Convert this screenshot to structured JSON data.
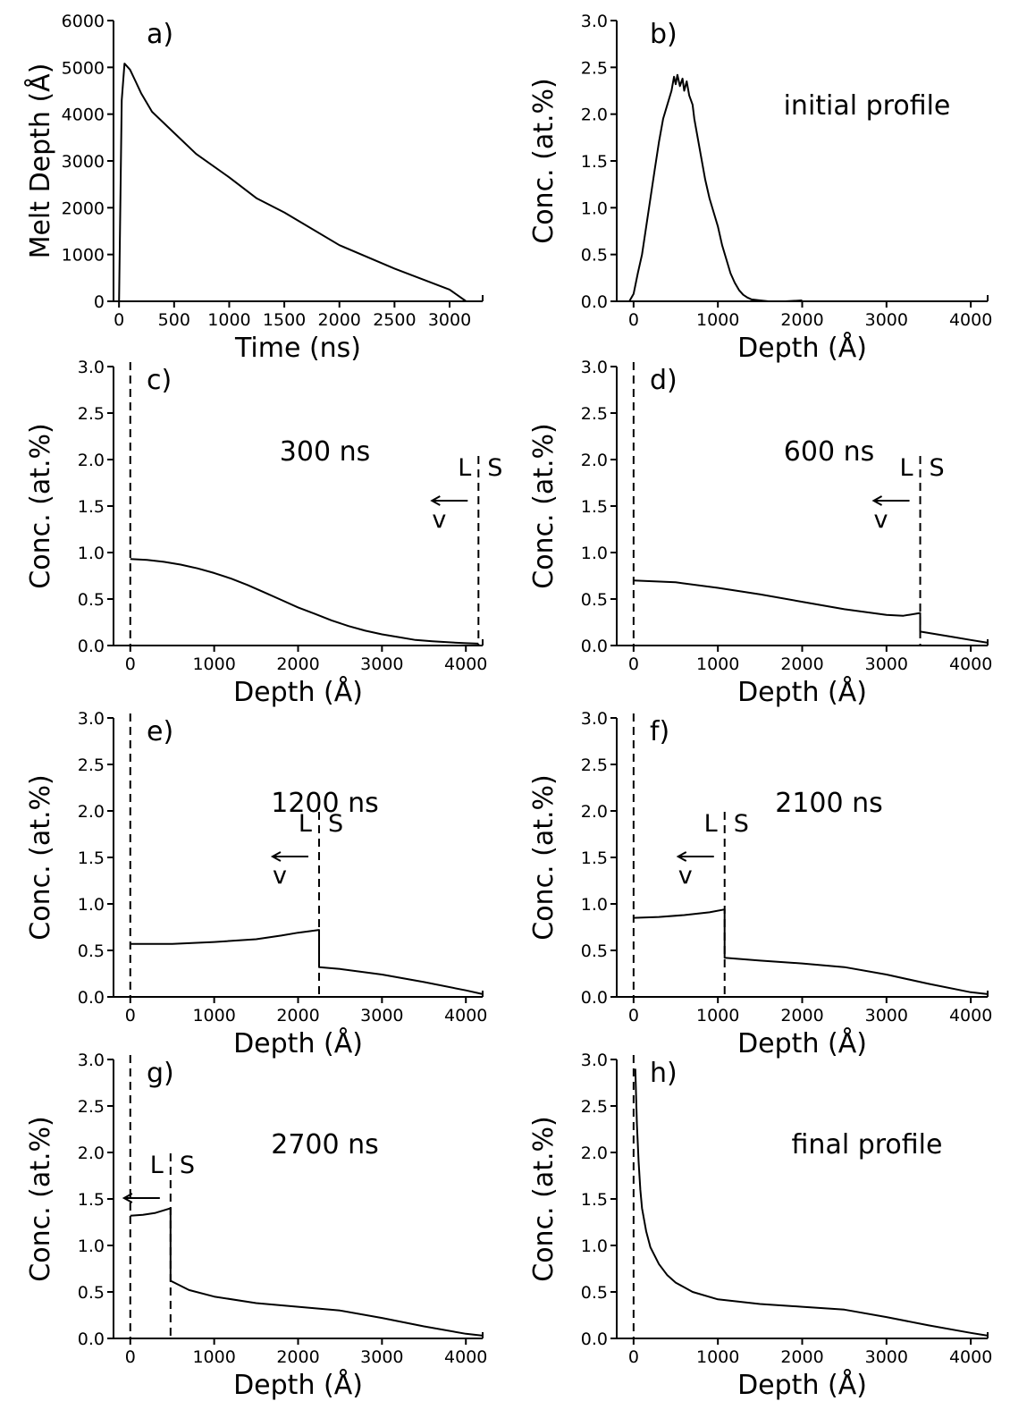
{
  "chart_data": [
    {
      "id": "a",
      "type": "line",
      "letter": "a)",
      "annotation": "",
      "xlabel": "Time (ns)",
      "ylabel": "Melt Depth (Å)",
      "xlim": [
        -50,
        3300
      ],
      "ylim": [
        0,
        6000
      ],
      "xticks": [
        0,
        500,
        1000,
        1500,
        2000,
        2500,
        3000
      ],
      "yticks": [
        0,
        1000,
        2000,
        3000,
        4000,
        5000,
        6000
      ],
      "series": [
        {
          "x": [
            0,
            25,
            50,
            100,
            150,
            200,
            300,
            500,
            700,
            1000,
            1250,
            1500,
            2000,
            2500,
            3000,
            3150
          ],
          "y": [
            0,
            4300,
            5080,
            4950,
            4700,
            4450,
            4050,
            3600,
            3150,
            2650,
            2200,
            1900,
            1200,
            700,
            250,
            0
          ]
        }
      ],
      "interface": null,
      "surface_dashed": false
    },
    {
      "id": "b",
      "type": "line",
      "letter": "b)",
      "annotation": "initial profile",
      "xlabel": "Depth (Å)",
      "ylabel": "Conc. (at.%)",
      "xlim": [
        -200,
        4200
      ],
      "ylim": [
        0,
        3
      ],
      "xticks": [
        0,
        1000,
        2000,
        3000,
        4000
      ],
      "yticks": [
        0.0,
        0.5,
        1.0,
        1.5,
        2.0,
        2.5,
        3.0
      ],
      "series": [
        {
          "x": [
            -50,
            0,
            50,
            100,
            150,
            200,
            250,
            300,
            350,
            400,
            450,
            480,
            500,
            520,
            550,
            580,
            600,
            630,
            660,
            700,
            720,
            750,
            800,
            850,
            900,
            950,
            1000,
            1050,
            1100,
            1150,
            1200,
            1250,
            1300,
            1350,
            1400,
            1500,
            1600,
            1800,
            2000
          ],
          "y": [
            0.0,
            0.08,
            0.3,
            0.5,
            0.8,
            1.1,
            1.4,
            1.7,
            1.95,
            2.1,
            2.25,
            2.4,
            2.32,
            2.42,
            2.3,
            2.38,
            2.25,
            2.35,
            2.2,
            2.1,
            1.95,
            1.8,
            1.55,
            1.3,
            1.1,
            0.95,
            0.8,
            0.6,
            0.45,
            0.3,
            0.2,
            0.12,
            0.07,
            0.04,
            0.02,
            0.01,
            0.0,
            0.0,
            0.01
          ]
        }
      ],
      "interface": null,
      "surface_dashed": false
    },
    {
      "id": "c",
      "type": "line",
      "letter": "c)",
      "annotation": "300 ns",
      "xlabel": "Depth (Å)",
      "ylabel": "Conc. (at.%)",
      "xlim": [
        -200,
        4200
      ],
      "ylim": [
        0,
        3
      ],
      "xticks": [
        0,
        1000,
        2000,
        3000,
        4000
      ],
      "yticks": [
        0.0,
        0.5,
        1.0,
        1.5,
        2.0,
        2.5,
        3.0
      ],
      "series": [
        {
          "x": [
            0,
            200,
            400,
            600,
            800,
            1000,
            1200,
            1400,
            1600,
            1800,
            2000,
            2200,
            2400,
            2600,
            2800,
            3000,
            3200,
            3400,
            3600,
            3800,
            4000,
            4150
          ],
          "y": [
            0.93,
            0.92,
            0.9,
            0.87,
            0.83,
            0.78,
            0.72,
            0.65,
            0.57,
            0.49,
            0.41,
            0.34,
            0.27,
            0.21,
            0.16,
            0.12,
            0.09,
            0.06,
            0.045,
            0.035,
            0.025,
            0.02
          ]
        }
      ],
      "interface": {
        "x": 4150,
        "L": "L",
        "S": "S",
        "v": "v"
      },
      "surface_dashed": true
    },
    {
      "id": "d",
      "type": "line",
      "letter": "d)",
      "annotation": "600 ns",
      "xlabel": "Depth (Å)",
      "ylabel": "Conc. (at.%)",
      "xlim": [
        -200,
        4200
      ],
      "ylim": [
        0,
        3
      ],
      "xticks": [
        0,
        1000,
        2000,
        3000,
        4000
      ],
      "yticks": [
        0.0,
        0.5,
        1.0,
        1.5,
        2.0,
        2.5,
        3.0
      ],
      "series": [
        {
          "x": [
            0,
            500,
            1000,
            1500,
            2000,
            2500,
            3000,
            3200,
            3400,
            3400,
            3600,
            3800,
            4000,
            4200
          ],
          "y": [
            0.7,
            0.68,
            0.62,
            0.55,
            0.47,
            0.39,
            0.33,
            0.32,
            0.35,
            0.15,
            0.12,
            0.09,
            0.06,
            0.03
          ]
        }
      ],
      "interface": {
        "x": 3400,
        "L": "L",
        "S": "S",
        "v": "v"
      },
      "surface_dashed": true
    },
    {
      "id": "e",
      "type": "line",
      "letter": "e)",
      "annotation": "1200 ns",
      "xlabel": "Depth (Å)",
      "ylabel": "Conc. (at.%)",
      "xlim": [
        -200,
        4200
      ],
      "ylim": [
        0,
        3
      ],
      "xticks": [
        0,
        1000,
        2000,
        3000,
        4000
      ],
      "yticks": [
        0.0,
        0.5,
        1.0,
        1.5,
        2.0,
        2.5,
        3.0
      ],
      "series": [
        {
          "x": [
            0,
            500,
            1000,
            1500,
            1800,
            2000,
            2250,
            2250,
            2500,
            3000,
            3500,
            4000,
            4200
          ],
          "y": [
            0.57,
            0.57,
            0.59,
            0.62,
            0.66,
            0.69,
            0.72,
            0.32,
            0.3,
            0.24,
            0.16,
            0.07,
            0.03
          ]
        }
      ],
      "interface": {
        "x": 2250,
        "L": "L",
        "S": "S",
        "v": "v"
      },
      "surface_dashed": true
    },
    {
      "id": "f",
      "type": "line",
      "letter": "f)",
      "annotation": "2100 ns",
      "xlabel": "Depth (Å)",
      "ylabel": "Conc. (at.%)",
      "xlim": [
        -200,
        4200
      ],
      "ylim": [
        0,
        3
      ],
      "xticks": [
        0,
        1000,
        2000,
        3000,
        4000
      ],
      "yticks": [
        0.0,
        0.5,
        1.0,
        1.5,
        2.0,
        2.5,
        3.0
      ],
      "series": [
        {
          "x": [
            0,
            300,
            600,
            900,
            1080,
            1080,
            1500,
            2000,
            2500,
            3000,
            3500,
            4000,
            4200
          ],
          "y": [
            0.85,
            0.86,
            0.88,
            0.91,
            0.94,
            0.42,
            0.39,
            0.36,
            0.32,
            0.24,
            0.14,
            0.05,
            0.03
          ]
        }
      ],
      "interface": {
        "x": 1080,
        "L": "L",
        "S": "S",
        "v": "v"
      },
      "surface_dashed": true
    },
    {
      "id": "g",
      "type": "line",
      "letter": "g)",
      "annotation": "2700 ns",
      "xlabel": "Depth (Å)",
      "ylabel": "Conc. (at.%)",
      "xlim": [
        -200,
        4200
      ],
      "ylim": [
        0,
        3
      ],
      "xticks": [
        0,
        1000,
        2000,
        3000,
        4000
      ],
      "yticks": [
        0.0,
        0.5,
        1.0,
        1.5,
        2.0,
        2.5,
        3.0
      ],
      "series": [
        {
          "x": [
            0,
            150,
            300,
            480,
            480,
            700,
            1000,
            1500,
            2000,
            2500,
            3000,
            3500,
            4000,
            4200
          ],
          "y": [
            1.32,
            1.33,
            1.35,
            1.4,
            0.62,
            0.52,
            0.45,
            0.38,
            0.34,
            0.3,
            0.22,
            0.13,
            0.05,
            0.03
          ]
        }
      ],
      "interface": {
        "x": 480,
        "L": "L",
        "S": "S",
        "v": ""
      },
      "surface_dashed": true
    },
    {
      "id": "h",
      "type": "line",
      "letter": "h)",
      "annotation": "final profile",
      "xlabel": "Depth (Å)",
      "ylabel": "Conc. (at.%)",
      "xlim": [
        -200,
        4200
      ],
      "ylim": [
        0,
        3
      ],
      "xticks": [
        0,
        1000,
        2000,
        3000,
        4000
      ],
      "yticks": [
        0.0,
        0.5,
        1.0,
        1.5,
        2.0,
        2.5,
        3.0
      ],
      "series": [
        {
          "x": [
            20,
            40,
            60,
            80,
            100,
            150,
            200,
            300,
            400,
            500,
            700,
            1000,
            1500,
            2000,
            2500,
            3000,
            3500,
            4000,
            4200
          ],
          "y": [
            2.9,
            2.3,
            1.9,
            1.6,
            1.4,
            1.15,
            0.98,
            0.8,
            0.68,
            0.6,
            0.5,
            0.42,
            0.37,
            0.34,
            0.31,
            0.23,
            0.14,
            0.06,
            0.03
          ]
        }
      ],
      "interface": null,
      "surface_dashed": true
    }
  ]
}
